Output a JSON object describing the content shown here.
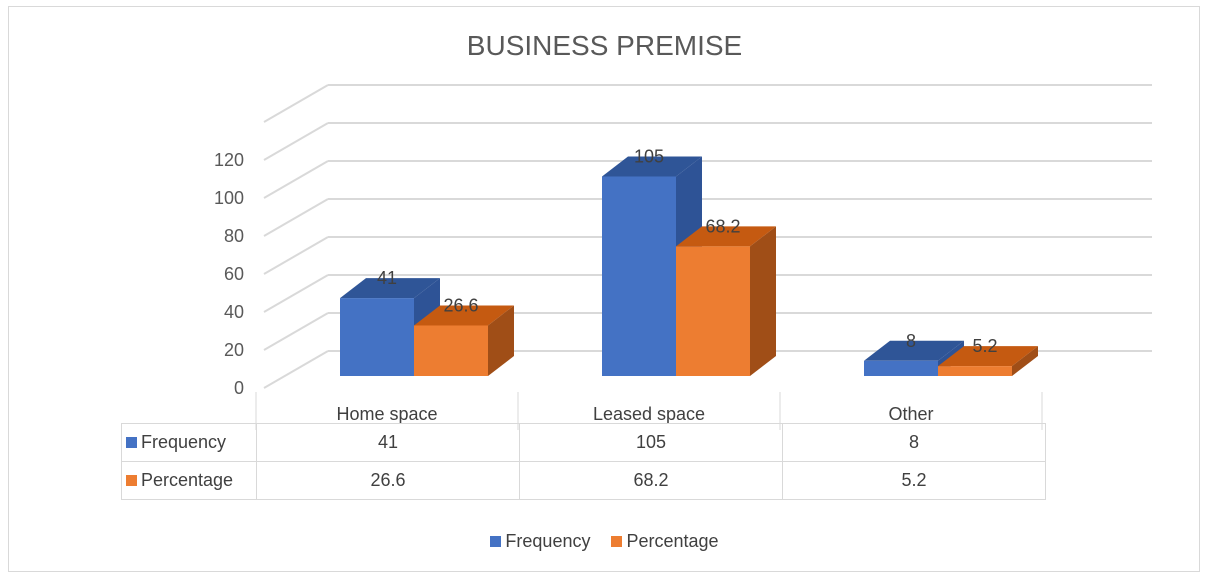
{
  "colors": {
    "frequency": "#4472c4",
    "frequency_top": "#2f5597",
    "frequency_side": "#2e5396",
    "percentage": "#ed7d31",
    "percentage_top": "#c55a11",
    "percentage_side": "#a04e17",
    "grid": "#d9d9d9"
  },
  "chart_data": {
    "type": "bar",
    "title": "BUSINESS PREMISE",
    "categories": [
      "Home space",
      "Leased space",
      "Other"
    ],
    "series": [
      {
        "name": "Frequency",
        "values": [
          41,
          105,
          8
        ],
        "labels": [
          "41",
          "105",
          "8"
        ]
      },
      {
        "name": "Percentage",
        "values": [
          26.6,
          68.2,
          5.2
        ],
        "labels": [
          "26.6",
          "68.2",
          "5.2"
        ]
      }
    ],
    "ylim": [
      0,
      120
    ],
    "yticks": [
      "0",
      "20",
      "40",
      "60",
      "80",
      "100",
      "120"
    ],
    "grid": true,
    "legend": "bottom",
    "data_table": true,
    "style": "3d-clustered-column"
  }
}
